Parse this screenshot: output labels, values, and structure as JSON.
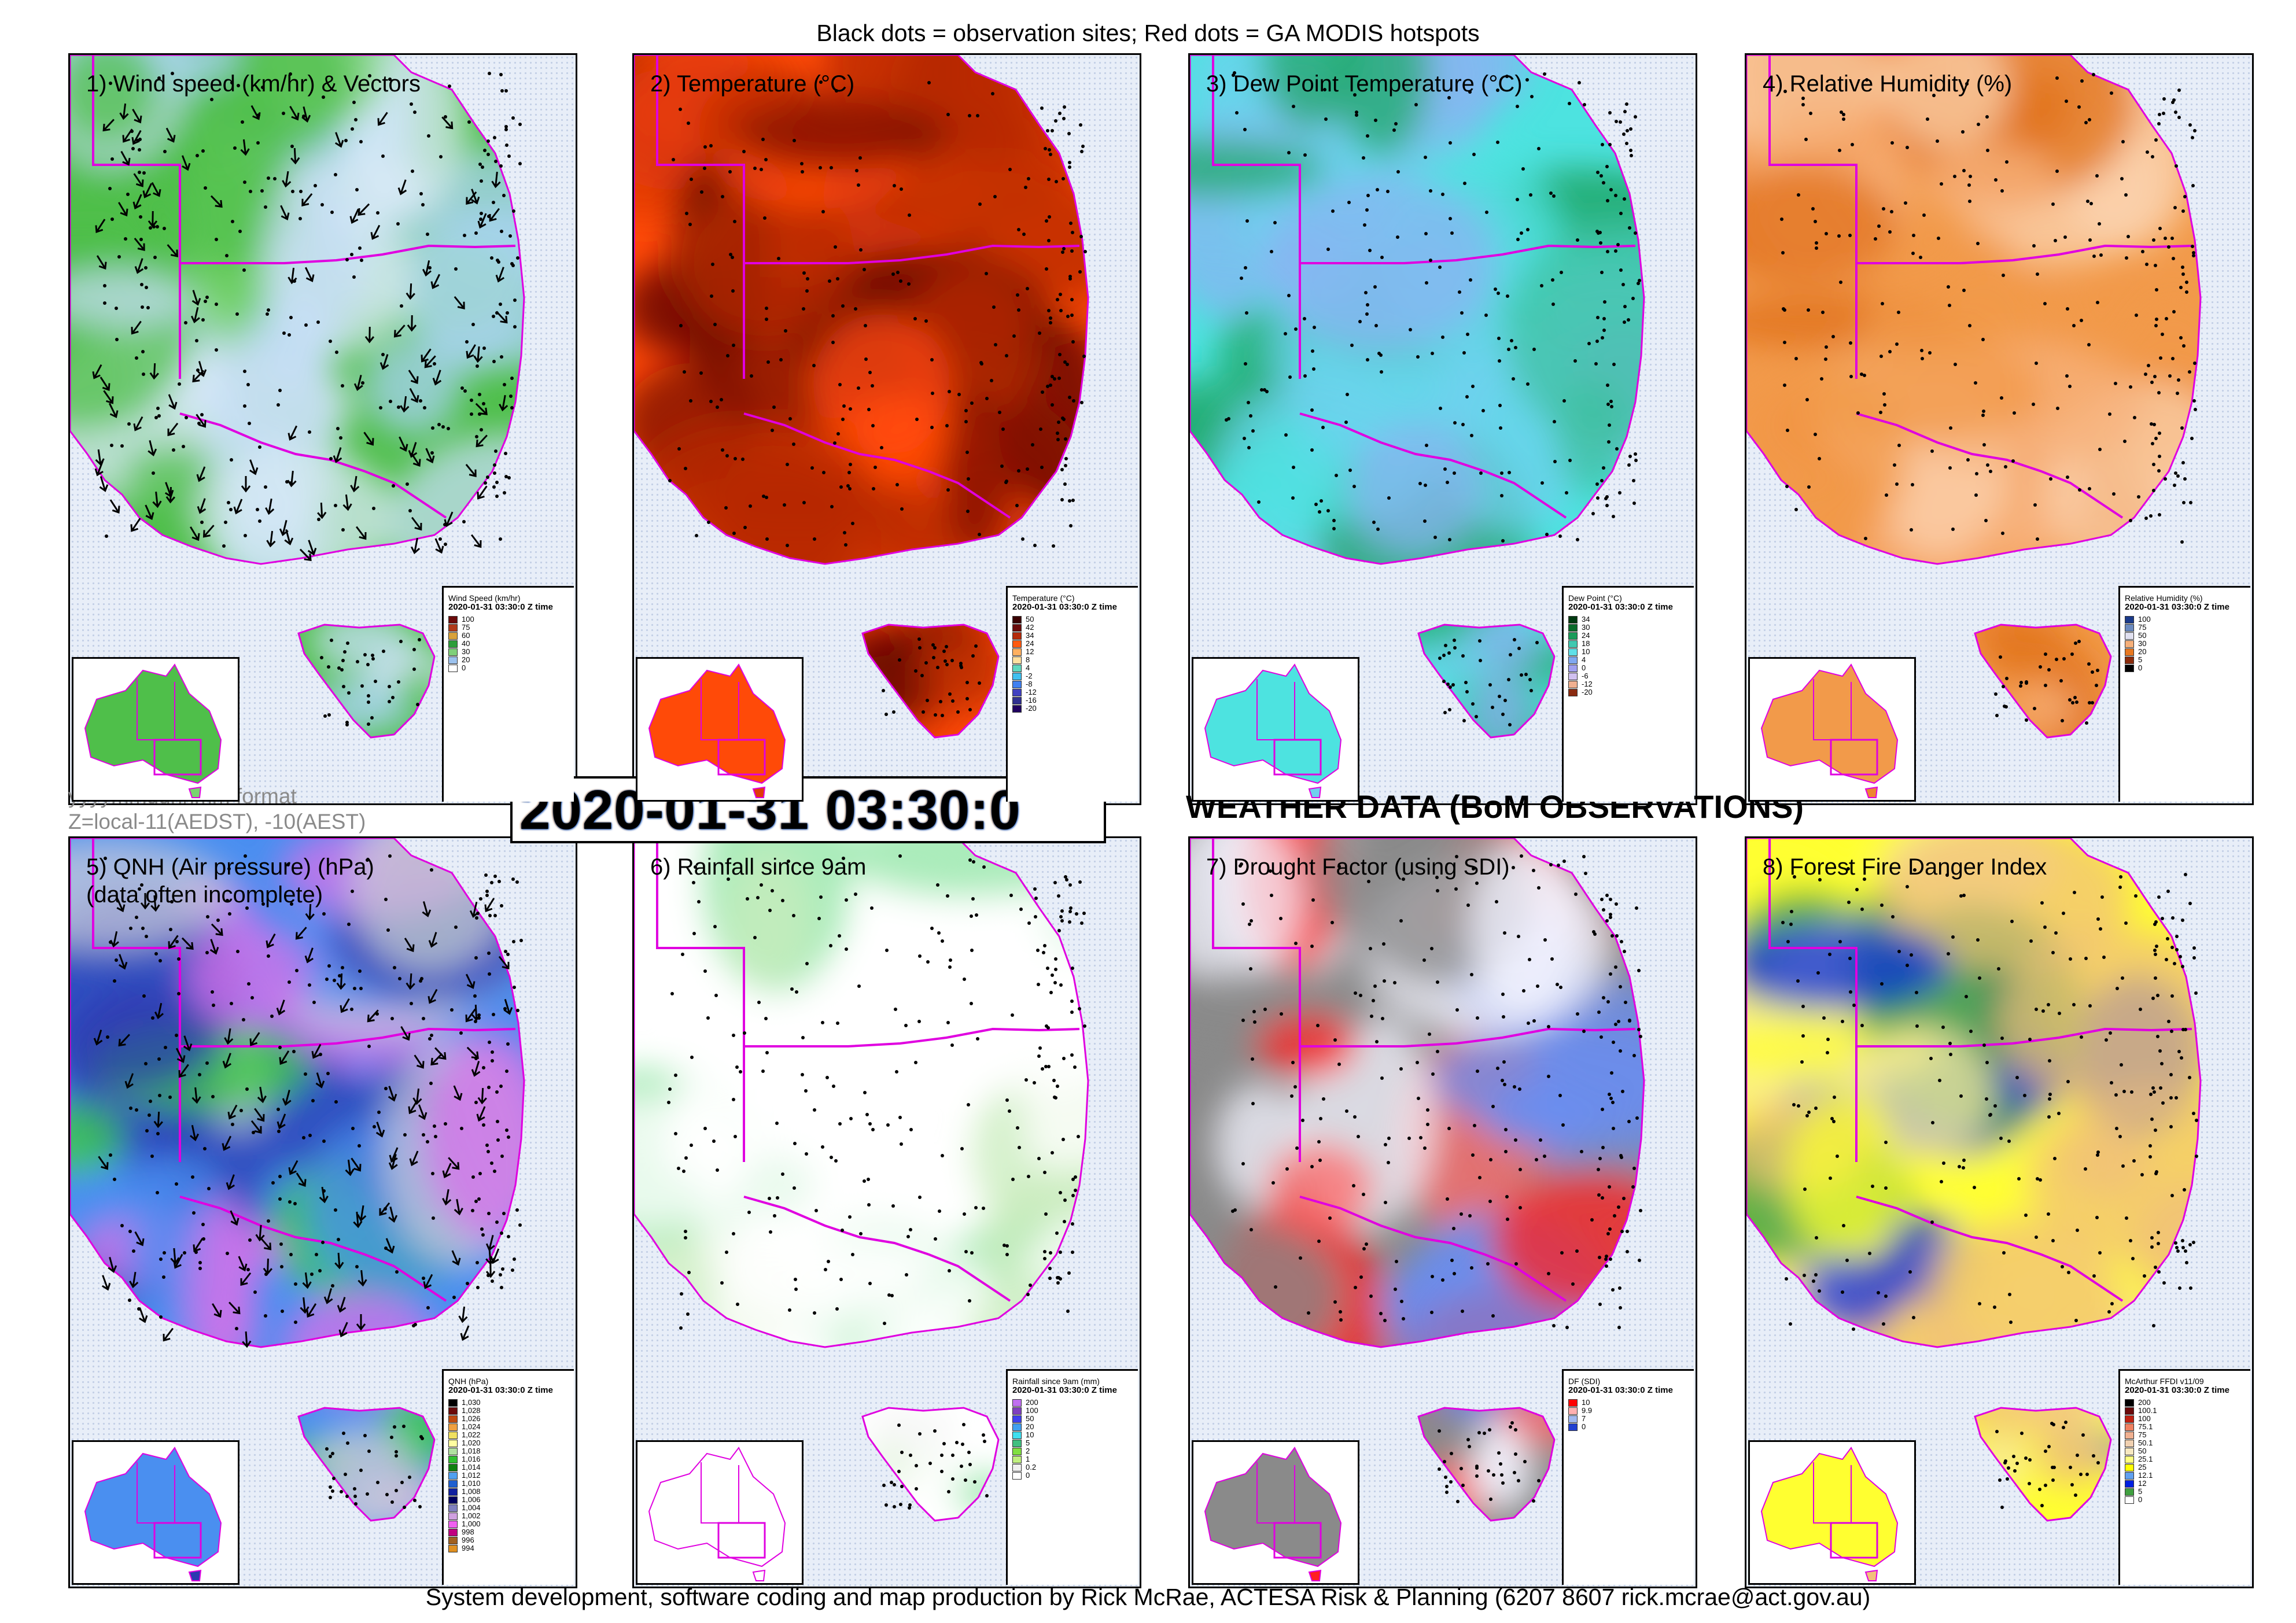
{
  "header_note": "Black dots = observation sites; Red dots = GA MODIS hotspots",
  "footer_note": "System development, software coding and map production by Rick McRae, ACTESA Risk & Planning (6207 8607 rick.mcrae@act.gov.au)",
  "date_format_note": "yyyymmddhhmm format",
  "timezone_note": "Z=local-11(AEDST), -10(AEST)",
  "datetime": "2020-01-31 03:30:0",
  "section_title": "WEATHER DATA (BoM OBSERVATIONS)",
  "legend_time": "2020-01-31 03:30:0 Z time",
  "panels": [
    {
      "title": "1) Wind speed (km/hr) & Vectors",
      "legend_title": "Wind Speed (km/hr)",
      "legend": [
        {
          "label": "100",
          "color": "#6b0a0a"
        },
        {
          "label": "75",
          "color": "#b03a1a"
        },
        {
          "label": "60",
          "color": "#d9a23a"
        },
        {
          "label": "40",
          "color": "#2e9e3a"
        },
        {
          "label": "30",
          "color": "#7fd07a"
        },
        {
          "label": "20",
          "color": "#9cc2ee"
        },
        {
          "label": "0",
          "color": "#ffffff"
        }
      ],
      "palette": [
        "#4fbf4a",
        "#79d46f",
        "#a9d3f4",
        "#c5def6",
        "#dbe9f8"
      ]
    },
    {
      "title": "2) Temperature (°C)",
      "legend_title": "Temperature (°C)",
      "legend": [
        {
          "label": "50",
          "color": "#3a0000"
        },
        {
          "label": "42",
          "color": "#6b0a0a"
        },
        {
          "label": "34",
          "color": "#b52a0a"
        },
        {
          "label": "24",
          "color": "#ff5a10"
        },
        {
          "label": "12",
          "color": "#ffb060"
        },
        {
          "label": "8",
          "color": "#ffe0a0"
        },
        {
          "label": "4",
          "color": "#60d8c0"
        },
        {
          "label": "-2",
          "color": "#40c0f0"
        },
        {
          "label": "-8",
          "color": "#4080f0"
        },
        {
          "label": "-12",
          "color": "#4040c0"
        },
        {
          "label": "-16",
          "color": "#303090"
        },
        {
          "label": "-20",
          "color": "#200060"
        }
      ],
      "palette": [
        "#ff4a08",
        "#e03a08",
        "#b52a06",
        "#7a0d05",
        "#5a0404"
      ]
    },
    {
      "title": "3) Dew Point Temperature (°C)",
      "legend_title": "Dew Point (°C)",
      "legend": [
        {
          "label": "34",
          "color": "#003a10"
        },
        {
          "label": "30",
          "color": "#0a6b2a"
        },
        {
          "label": "24",
          "color": "#1a9c5a"
        },
        {
          "label": "18",
          "color": "#40c8b0"
        },
        {
          "label": "10",
          "color": "#60e0e8"
        },
        {
          "label": "4",
          "color": "#80a8f0"
        },
        {
          "label": "0",
          "color": "#a0a0f0"
        },
        {
          "label": "-6",
          "color": "#d0c0f0"
        },
        {
          "label": "-12",
          "color": "#f0b090"
        },
        {
          "label": "-20",
          "color": "#8a2a10"
        }
      ],
      "palette": [
        "#4de3e0",
        "#6fd0ee",
        "#88b4f2",
        "#1fa86a",
        "#3fc0a0"
      ]
    },
    {
      "title": "4) Relative Humidity (%)",
      "legend_title": "Relative Humidity (%)",
      "legend": [
        {
          "label": "100",
          "color": "#1a3a8a"
        },
        {
          "label": "75",
          "color": "#6a8ac0"
        },
        {
          "label": "50",
          "color": "#e0e0f0"
        },
        {
          "label": "30",
          "color": "#f6b07a"
        },
        {
          "label": "20",
          "color": "#e87820"
        },
        {
          "label": "5",
          "color": "#8a2a0a"
        },
        {
          "label": "0",
          "color": "#000000"
        }
      ],
      "palette": [
        "#f29a4a",
        "#ed8530",
        "#f7b27c",
        "#fbd3b0",
        "#e07018"
      ]
    },
    {
      "title": "5) QNH (Air pressure) (hPa) (data often incomplete)",
      "title_line1": "5) QNH (Air pressure) (hPa)",
      "title_line2": "(data often incomplete)",
      "legend_title": "QNH (hPa)",
      "legend": [
        {
          "label": "1,030",
          "color": "#000000"
        },
        {
          "label": "1,028",
          "color": "#6b0a0a"
        },
        {
          "label": "1,026",
          "color": "#c04a10"
        },
        {
          "label": "1,024",
          "color": "#f0a040"
        },
        {
          "label": "1,022",
          "color": "#f0e060"
        },
        {
          "label": "1,020",
          "color": "#ffffa0"
        },
        {
          "label": "1,018",
          "color": "#b0e0a0"
        },
        {
          "label": "1,016",
          "color": "#30c030"
        },
        {
          "label": "1,014",
          "color": "#108010"
        },
        {
          "label": "1,012",
          "color": "#50a0f0"
        },
        {
          "label": "1,010",
          "color": "#2060d0"
        },
        {
          "label": "1,008",
          "color": "#1020a0"
        },
        {
          "label": "1,006",
          "color": "#000060"
        },
        {
          "label": "1,004",
          "color": "#8080c0"
        },
        {
          "label": "1,002",
          "color": "#d0a0e0"
        },
        {
          "label": "1,000",
          "color": "#f060f0"
        },
        {
          "label": "998",
          "color": "#c00080"
        },
        {
          "label": "996",
          "color": "#a06020"
        },
        {
          "label": "994",
          "color": "#e09020"
        }
      ],
      "palette": [
        "#4a8ff0",
        "#2a3ab0",
        "#c8c8d8",
        "#3ccf3c",
        "#d870e8"
      ]
    },
    {
      "title": "6) Rainfall since 9am",
      "legend_title": "Rainfall since 9am (mm)",
      "legend": [
        {
          "label": "200",
          "color": "#c070f0"
        },
        {
          "label": "100",
          "color": "#8040c0"
        },
        {
          "label": "50",
          "color": "#4040f0"
        },
        {
          "label": "20",
          "color": "#40a0f0"
        },
        {
          "label": "10",
          "color": "#40e0f0"
        },
        {
          "label": "5",
          "color": "#40c080"
        },
        {
          "label": "2",
          "color": "#80e040"
        },
        {
          "label": "1",
          "color": "#c0f080"
        },
        {
          "label": "0.2",
          "color": "#f0f0f0"
        },
        {
          "label": "0",
          "color": "#ffffff"
        }
      ],
      "palette": [
        "#ffffff",
        "#ffffff",
        "#f6f6f6",
        "#c8ecbc",
        "#8fe6a4"
      ]
    },
    {
      "title": "7) Drought Factor (using SDI)",
      "legend_title": "DF (SDI)",
      "legend": [
        {
          "label": "10",
          "color": "#ff0000"
        },
        {
          "label": "9.9",
          "color": "#ffb0b0"
        },
        {
          "label": "7",
          "color": "#a0b8f0"
        },
        {
          "label": "0",
          "color": "#2040d0"
        }
      ],
      "palette": [
        "#8a8a8a",
        "#ff2020",
        "#ff6a6a",
        "#f4f4ff",
        "#6a8ef0"
      ]
    },
    {
      "title": "8) Forest Fire Danger Index",
      "legend_title": "McArthur FFDI v11/09",
      "legend": [
        {
          "label": "200",
          "color": "#000000"
        },
        {
          "label": "100.1",
          "color": "#6b0a0a"
        },
        {
          "label": "100",
          "color": "#c02010"
        },
        {
          "label": "75.1",
          "color": "#f08060"
        },
        {
          "label": "75",
          "color": "#f0b090"
        },
        {
          "label": "50.1",
          "color": "#f0d0b0"
        },
        {
          "label": "50",
          "color": "#f8e8c0"
        },
        {
          "label": "25.1",
          "color": "#ffff80"
        },
        {
          "label": "25",
          "color": "#ffff00"
        },
        {
          "label": "12.1",
          "color": "#60a0f0"
        },
        {
          "label": "12",
          "color": "#0020e0"
        },
        {
          "label": "5",
          "color": "#40a040"
        },
        {
          "label": "0",
          "color": "#ffffff"
        }
      ],
      "palette": [
        "#ffff30",
        "#f2c07a",
        "#f8e8a8",
        "#1030e0",
        "#2e9a3e"
      ]
    }
  ],
  "colors": {
    "border_magenta": "#e000e0",
    "coast_magenta": "#e000e0",
    "ocean": "#e8eef8",
    "hotspot": "#ff0000",
    "site": "#000000"
  }
}
